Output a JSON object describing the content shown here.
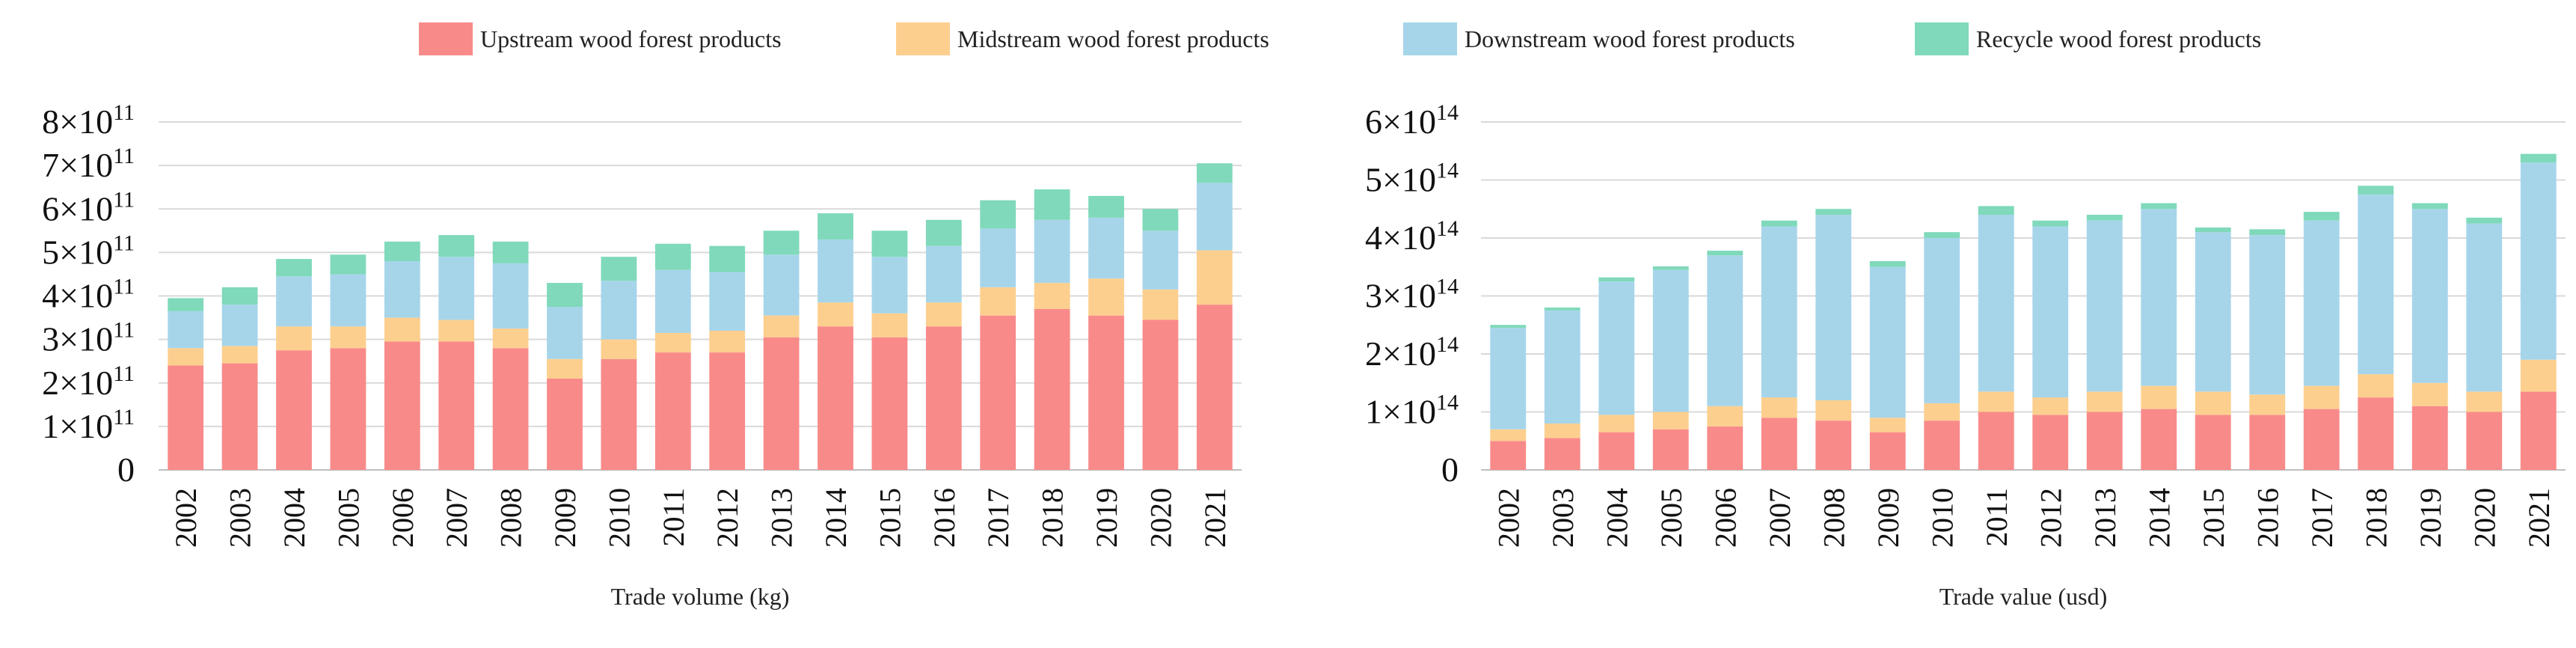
{
  "legend": [
    {
      "label": "Upstream wood forest products",
      "color": "#F98A8A"
    },
    {
      "label": "Midstream wood forest products",
      "color": "#FDCF8E"
    },
    {
      "label": "Downstream wood forest products",
      "color": "#A6D5EA"
    },
    {
      "label": "Recycle wood forest products",
      "color": "#7FD9BA"
    }
  ],
  "chart_data": [
    {
      "type": "bar",
      "stacked": true,
      "xlabel": "Trade volume (kg)",
      "ylabel": "",
      "ylim": [
        0,
        800000000000.0
      ],
      "yticks": [
        {
          "value": 0,
          "mantissa": "0",
          "exp": ""
        },
        {
          "value": 100000000000.0,
          "mantissa": "1×10",
          "exp": "11"
        },
        {
          "value": 200000000000.0,
          "mantissa": "2×10",
          "exp": "11"
        },
        {
          "value": 300000000000.0,
          "mantissa": "3×10",
          "exp": "11"
        },
        {
          "value": 400000000000.0,
          "mantissa": "4×10",
          "exp": "11"
        },
        {
          "value": 500000000000.0,
          "mantissa": "5×10",
          "exp": "11"
        },
        {
          "value": 600000000000.0,
          "mantissa": "6×10",
          "exp": "11"
        },
        {
          "value": 700000000000.0,
          "mantissa": "7×10",
          "exp": "11"
        },
        {
          "value": 800000000000.0,
          "mantissa": "8×10",
          "exp": "11"
        }
      ],
      "categories": [
        "2002",
        "2003",
        "2004",
        "2005",
        "2006",
        "2007",
        "2008",
        "2009",
        "2010",
        "2011",
        "2012",
        "2013",
        "2014",
        "2015",
        "2016",
        "2017",
        "2018",
        "2019",
        "2020",
        "2021"
      ],
      "series": [
        {
          "name": "Upstream wood forest products",
          "values": [
            240000000000.0,
            245000000000.0,
            275000000000.0,
            280000000000.0,
            295000000000.0,
            295000000000.0,
            280000000000.0,
            210000000000.0,
            255000000000.0,
            270000000000.0,
            270000000000.0,
            305000000000.0,
            330000000000.0,
            305000000000.0,
            330000000000.0,
            355000000000.0,
            370000000000.0,
            355000000000.0,
            345000000000.0,
            380000000000.0
          ]
        },
        {
          "name": "Midstream wood forest products",
          "values": [
            40000000000.0,
            40000000000.0,
            55000000000.0,
            50000000000.0,
            55000000000.0,
            50000000000.0,
            45000000000.0,
            45000000000.0,
            45000000000.0,
            45000000000.0,
            50000000000.0,
            50000000000.0,
            55000000000.0,
            55000000000.0,
            55000000000.0,
            65000000000.0,
            60000000000.0,
            85000000000.0,
            70000000000.0,
            125000000000.0
          ]
        },
        {
          "name": "Downstream wood forest products",
          "values": [
            85000000000.0,
            95000000000.0,
            115000000000.0,
            120000000000.0,
            130000000000.0,
            145000000000.0,
            150000000000.0,
            120000000000.0,
            135000000000.0,
            145000000000.0,
            135000000000.0,
            140000000000.0,
            145000000000.0,
            130000000000.0,
            130000000000.0,
            135000000000.0,
            145000000000.0,
            140000000000.0,
            135000000000.0,
            155000000000.0
          ]
        },
        {
          "name": "Recycle wood forest products",
          "values": [
            30000000000.0,
            40000000000.0,
            40000000000.0,
            45000000000.0,
            45000000000.0,
            50000000000.0,
            50000000000.0,
            55000000000.0,
            55000000000.0,
            60000000000.0,
            60000000000.0,
            55000000000.0,
            60000000000.0,
            60000000000.0,
            60000000000.0,
            65000000000.0,
            70000000000.0,
            50000000000.0,
            50000000000.0,
            45000000000.0
          ]
        }
      ]
    },
    {
      "type": "bar",
      "stacked": true,
      "xlabel": "Trade value (usd)",
      "ylabel": "",
      "ylim": [
        0,
        600000000000000.0
      ],
      "yticks": [
        {
          "value": 0,
          "mantissa": "0",
          "exp": ""
        },
        {
          "value": 100000000000000.0,
          "mantissa": "1×10",
          "exp": "14"
        },
        {
          "value": 200000000000000.0,
          "mantissa": "2×10",
          "exp": "14"
        },
        {
          "value": 300000000000000.0,
          "mantissa": "3×10",
          "exp": "14"
        },
        {
          "value": 400000000000000.0,
          "mantissa": "4×10",
          "exp": "14"
        },
        {
          "value": 500000000000000.0,
          "mantissa": "5×10",
          "exp": "14"
        },
        {
          "value": 600000000000000.0,
          "mantissa": "6×10",
          "exp": "14"
        }
      ],
      "categories": [
        "2002",
        "2003",
        "2004",
        "2005",
        "2006",
        "2007",
        "2008",
        "2009",
        "2010",
        "2011",
        "2012",
        "2013",
        "2014",
        "2015",
        "2016",
        "2017",
        "2018",
        "2019",
        "2020",
        "2021"
      ],
      "series": [
        {
          "name": "Upstream wood forest products",
          "values": [
            50000000000000.0,
            55000000000000.0,
            65000000000000.0,
            70000000000000.0,
            75000000000000.0,
            90000000000000.0,
            85000000000000.0,
            65000000000000.0,
            85000000000000.0,
            100000000000000.0,
            95000000000000.0,
            100000000000000.0,
            105000000000000.0,
            95000000000000.0,
            95000000000000.0,
            105000000000000.0,
            125000000000000.0,
            110000000000000.0,
            100000000000000.0,
            135000000000000.0
          ]
        },
        {
          "name": "Midstream wood forest products",
          "values": [
            20000000000000.0,
            25000000000000.0,
            30000000000000.0,
            30000000000000.0,
            35000000000000.0,
            35000000000000.0,
            35000000000000.0,
            25000000000000.0,
            30000000000000.0,
            35000000000000.0,
            30000000000000.0,
            35000000000000.0,
            40000000000000.0,
            40000000000000.0,
            35000000000000.0,
            40000000000000.0,
            40000000000000.0,
            40000000000000.0,
            35000000000000.0,
            55000000000000.0
          ]
        },
        {
          "name": "Downstream wood forest products",
          "values": [
            175000000000000.0,
            195000000000000.0,
            230000000000000.0,
            245000000000000.0,
            260000000000000.0,
            295000000000000.0,
            320000000000000.0,
            260000000000000.0,
            285000000000000.0,
            305000000000000.0,
            295000000000000.0,
            295000000000000.0,
            305000000000000.0,
            275000000000000.0,
            275000000000000.0,
            285000000000000.0,
            310000000000000.0,
            300000000000000.0,
            290000000000000.0,
            340000000000000.0
          ]
        },
        {
          "name": "Recycle wood forest products",
          "values": [
            5000000000000.0,
            5000000000000.0,
            7000000000000.0,
            6000000000000.0,
            8000000000000.0,
            10000000000000.0,
            10000000000000.0,
            10000000000000.0,
            10000000000000.0,
            15000000000000.0,
            10000000000000.0,
            10000000000000.0,
            10000000000000.0,
            8000000000000.0,
            10000000000000.0,
            15000000000000.0,
            15000000000000.0,
            10000000000000.0,
            10000000000000.0,
            15000000000000.0
          ]
        }
      ]
    }
  ]
}
